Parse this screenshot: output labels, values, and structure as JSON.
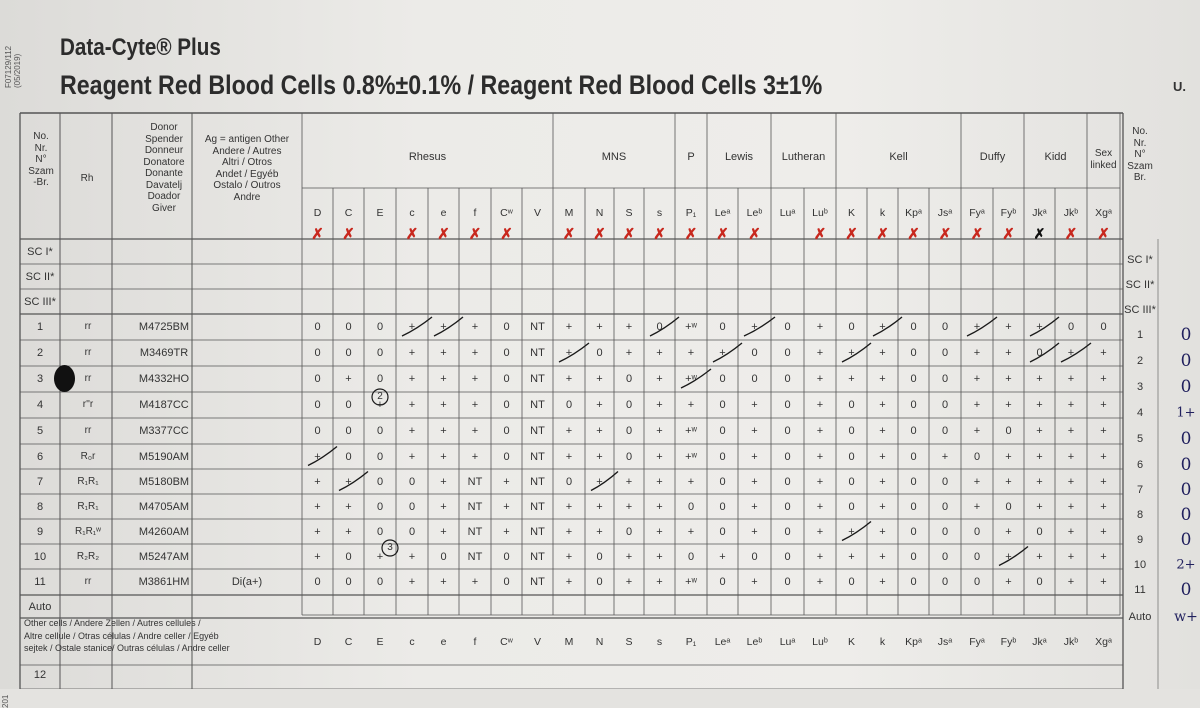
{
  "header": {
    "brand": "Data-Cyte® Plus",
    "subtitle": "Reagent Red Blood Cells 0.8%±0.1% / Reagent Red Blood Cells 3±1%",
    "corner_mark": "U.",
    "side_code": "F07129/112\n(05/2019)",
    "side_code_bottom": "201"
  },
  "columns": {
    "no_label": "No.\nNr.\nN°\nSzam\n-Br.",
    "rh_label": "Rh",
    "donor_label": "Donor\nSpender\nDonneur\nDonatore\nDonante\nDavatelj\nDoador\nGiver",
    "other_label": "Ag = antigen Other\nAndere / Autres\nAltri / Otros\nAndet / Egyéb\nOstalo / Outros\nAndre",
    "right_label": "No.\nNr.\nN°\nSzam\nBr."
  },
  "groups": [
    "Rhesus",
    "MNS",
    "P",
    "Lewis",
    "Lutheran",
    "Kell",
    "Duffy",
    "Kidd",
    "Sex\nlinked"
  ],
  "antigens": [
    "D",
    "C",
    "E",
    "c",
    "e",
    "f",
    "Cʷ",
    "V",
    "M",
    "N",
    "S",
    "s",
    "P₁",
    "Leᵃ",
    "Leᵇ",
    "Luᵃ",
    "Luᵇ",
    "K",
    "k",
    "Kpᵃ",
    "Jsᵃ",
    "Fyᵃ",
    "Fyᵇ",
    "Jkᵃ",
    "Jkᵇ",
    "Xgᵃ"
  ],
  "screening_rows": [
    "SC I*",
    "SC II*",
    "SC III*"
  ],
  "screening_rows_right": [
    "SC I*",
    "SC II*",
    "SC III*"
  ],
  "panel_rows": [
    {
      "no": "1",
      "rh": "rr",
      "donor": "M4725BM",
      "other": "",
      "cells": [
        "0",
        "0",
        "0",
        "+",
        "+",
        "+",
        "0",
        "NT",
        "+",
        "+",
        "+",
        "0",
        "+ʷ",
        "0",
        "+",
        "0",
        "+",
        "0",
        "+",
        "0",
        "0",
        "+",
        "+",
        "+",
        "0",
        "0"
      ],
      "result": "0"
    },
    {
      "no": "2",
      "rh": "rr",
      "donor": "M3469TR",
      "other": "",
      "cells": [
        "0",
        "0",
        "0",
        "+",
        "+",
        "+",
        "0",
        "NT",
        "+",
        "0",
        "+",
        "+",
        "+",
        "+",
        "0",
        "0",
        "+",
        "+",
        "+",
        "0",
        "0",
        "+",
        "+",
        "0",
        "+",
        "+"
      ],
      "result": "0"
    },
    {
      "no": "3",
      "rh": "rr",
      "donor": "M4332HO",
      "other": "",
      "cells": [
        "0",
        "+",
        "0",
        "+",
        "+",
        "+",
        "0",
        "NT",
        "+",
        "+",
        "0",
        "+",
        "+ʷ",
        "0",
        "0",
        "0",
        "+",
        "+",
        "+",
        "0",
        "0",
        "+",
        "+",
        "+",
        "+",
        "+"
      ],
      "result": "0"
    },
    {
      "no": "4",
      "rh": "r''r",
      "donor": "M4187CC",
      "other": "",
      "cells": [
        "0",
        "0",
        "+",
        "+",
        "+",
        "+",
        "0",
        "NT",
        "0",
        "+",
        "0",
        "+",
        "+",
        "0",
        "+",
        "0",
        "+",
        "0",
        "+",
        "0",
        "0",
        "+",
        "+",
        "+",
        "+",
        "+"
      ],
      "result": "1+"
    },
    {
      "no": "5",
      "rh": "rr",
      "donor": "M3377CC",
      "other": "",
      "cells": [
        "0",
        "0",
        "0",
        "+",
        "+",
        "+",
        "0",
        "NT",
        "+",
        "+",
        "0",
        "+",
        "+ʷ",
        "0",
        "+",
        "0",
        "+",
        "0",
        "+",
        "0",
        "0",
        "+",
        "0",
        "+",
        "+",
        "+"
      ],
      "result": "0"
    },
    {
      "no": "6",
      "rh": "R₀r",
      "donor": "M5190AM",
      "other": "",
      "cells": [
        "+",
        "0",
        "0",
        "+",
        "+",
        "+",
        "0",
        "NT",
        "+",
        "+",
        "0",
        "+",
        "+ʷ",
        "0",
        "+",
        "0",
        "+",
        "0",
        "+",
        "0",
        "+",
        "0",
        "+",
        "+",
        "+",
        "+"
      ],
      "result": "0"
    },
    {
      "no": "7",
      "rh": "R₁R₁",
      "donor": "M5180BM",
      "other": "",
      "cells": [
        "+",
        "+",
        "0",
        "0",
        "+",
        "NT",
        "+",
        "NT",
        "0",
        "+",
        "+",
        "+",
        "+",
        "0",
        "+",
        "0",
        "+",
        "0",
        "+",
        "0",
        "0",
        "+",
        "+",
        "+",
        "+",
        "+"
      ],
      "result": "0"
    },
    {
      "no": "8",
      "rh": "R₁R₁",
      "donor": "M4705AM",
      "other": "",
      "cells": [
        "+",
        "+",
        "0",
        "0",
        "+",
        "NT",
        "+",
        "NT",
        "+",
        "+",
        "+",
        "+",
        "0",
        "0",
        "+",
        "0",
        "+",
        "0",
        "+",
        "0",
        "0",
        "+",
        "0",
        "+",
        "+",
        "+"
      ],
      "result": "0"
    },
    {
      "no": "9",
      "rh": "R₁R₁ʷ",
      "donor": "M4260AM",
      "other": "",
      "cells": [
        "+",
        "+",
        "0",
        "0",
        "+",
        "NT",
        "+",
        "NT",
        "+",
        "+",
        "0",
        "+",
        "+",
        "0",
        "+",
        "0",
        "+",
        "+",
        "+",
        "0",
        "0",
        "0",
        "+",
        "0",
        "+",
        "+"
      ],
      "result": "0"
    },
    {
      "no": "10",
      "rh": "R₂R₂",
      "donor": "M5247AM",
      "other": "",
      "cells": [
        "+",
        "0",
        "+",
        "+",
        "0",
        "NT",
        "0",
        "NT",
        "+",
        "0",
        "+",
        "+",
        "0",
        "+",
        "0",
        "0",
        "+",
        "+",
        "+",
        "0",
        "0",
        "0",
        "+",
        "+",
        "+",
        "+"
      ],
      "result": "2+"
    },
    {
      "no": "11",
      "rh": "rr",
      "donor": "M3861HM",
      "other": "Di(a+)",
      "cells": [
        "0",
        "0",
        "0",
        "+",
        "+",
        "+",
        "0",
        "NT",
        "+",
        "0",
        "+",
        "+",
        "+ʷ",
        "0",
        "+",
        "0",
        "+",
        "0",
        "+",
        "0",
        "0",
        "0",
        "+",
        "0",
        "+",
        "+"
      ],
      "result": "0"
    }
  ],
  "auto_row": {
    "label": "Auto",
    "right_label": "Auto",
    "result": "w+"
  },
  "other_cells": {
    "label": "Other cells / Andere Zellen / Autres cellules /\nAltre cellule / Otras células / Andre celler / Egyéb\nsejtek / Ostale stanice/ Outras células / Andre celler"
  },
  "extra_row": {
    "no": "12"
  },
  "handwriting": {
    "circled_notes": [
      "2",
      "3"
    ],
    "ruled_out_antigens": [
      "D",
      "C",
      "c",
      "e",
      "f",
      "Cʷ",
      "M",
      "N",
      "S",
      "s",
      "P₁",
      "Leᵃ",
      "Leᵇ",
      "Luᵇ",
      "K",
      "k",
      "Kpᵃ",
      "Jsᵃ",
      "Fyᵃ",
      "Fyᵇ",
      "Jkᵇ",
      "Xgᵃ"
    ],
    "black_marked_antigens": [
      "Jkᵃ"
    ]
  },
  "colors": {
    "paper": "#ecebe8",
    "print": "#2c2c2c",
    "red_pen": "#c8281e",
    "blue_ink": "#21215e"
  }
}
